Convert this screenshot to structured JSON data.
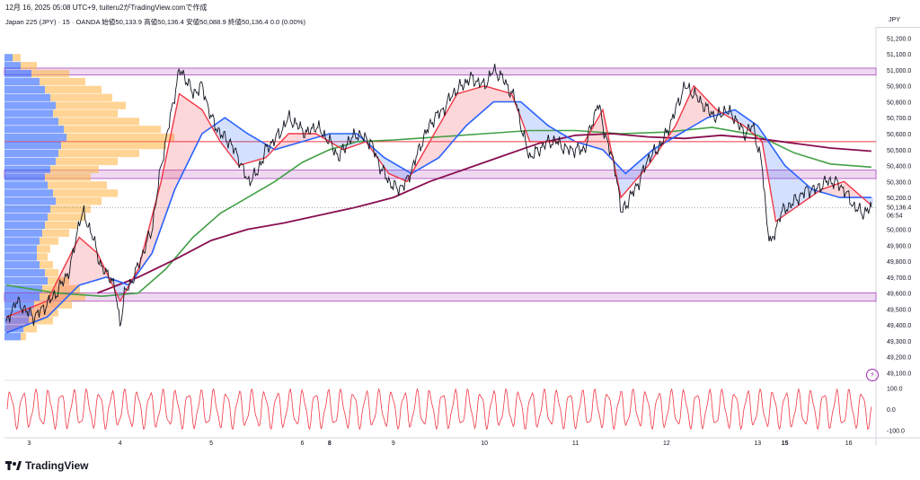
{
  "header": {
    "caption": "12月 16, 2025 05:08 UTC+9, tuiteru2がTradingView.comで作成",
    "symbol": "Japan 225 (JPY) · 15 · OANDA",
    "open": "始値50,133.9",
    "high": "高値50,136.4",
    "low": "安値50,088.9",
    "close": "終値50,136.4",
    "change": "0.0 (0.00%)"
  },
  "brand": {
    "name": "TradingView"
  },
  "price_panel": {
    "currency": "JPY",
    "last_price_label": "50,136.4",
    "countdown_label": "06:54"
  },
  "colors": {
    "price": "#131722",
    "kumo_red_line": "#f23645",
    "kumo_blue_line": "#2962ff",
    "ma_green": "#43a047",
    "ma_maroon": "#880e4f",
    "horizontal_red": "#f23645",
    "zone_purple": "#ce93d8",
    "volume_blue": "#2962ff",
    "volume_orange": "#ffb74d",
    "oscillator": "#f23645"
  },
  "chart_data": [
    {
      "type": "line",
      "y_axis_ticks": [
        51200,
        51100,
        51000,
        50900,
        50800,
        50700,
        50600,
        50500,
        50400,
        50300,
        50200,
        50100,
        50000,
        49900,
        49800,
        49700,
        49600,
        49500,
        49400,
        49300,
        49200,
        49100
      ],
      "y_tick_labels": [
        "51,200.0",
        "51,100.0",
        "51,000.0",
        "50,900.0",
        "50,800.0",
        "50,700.0",
        "50,600.0",
        "50,500.0",
        "50,400.0",
        "50,300.0",
        "50,200.0",
        "50,100.0",
        "50,000.0",
        "49,900.0",
        "49,800.0",
        "49,700.0",
        "49,600.0",
        "49,500.0",
        "49,400.0",
        "49,300.0",
        "49,200.0",
        "49,100.0"
      ],
      "ylim": [
        49080,
        51270
      ],
      "x_ticks": [
        "3",
        "4",
        "5",
        "6",
        "8",
        "9",
        "10",
        "11",
        "12",
        "13",
        "15",
        "16"
      ],
      "x_tick_bold": [
        false,
        false,
        false,
        false,
        true,
        false,
        false,
        false,
        false,
        false,
        true,
        false
      ],
      "x_tick_pos": [
        0,
        1,
        2,
        3,
        3.3,
        4,
        5,
        6,
        7,
        8,
        8.3,
        9
      ],
      "xlim": [
        -0.27,
        9.3
      ],
      "price": [
        [
          -0.25,
          49400
        ],
        [
          -0.15,
          49550
        ],
        [
          -0.05,
          49500
        ],
        [
          0.05,
          49450
        ],
        [
          0.15,
          49500
        ],
        [
          0.3,
          49600
        ],
        [
          0.45,
          49750
        ],
        [
          0.55,
          50050
        ],
        [
          0.6,
          50100
        ],
        [
          0.7,
          49950
        ],
        [
          0.8,
          49750
        ],
        [
          0.9,
          49700
        ],
        [
          0.95,
          49600
        ],
        [
          1.0,
          49400
        ],
        [
          1.05,
          49600
        ],
        [
          1.15,
          49700
        ],
        [
          1.25,
          49850
        ],
        [
          1.35,
          50000
        ],
        [
          1.45,
          50400
        ],
        [
          1.55,
          50700
        ],
        [
          1.65,
          51000
        ],
        [
          1.72,
          50950
        ],
        [
          1.8,
          50850
        ],
        [
          1.9,
          50900
        ],
        [
          2.0,
          50700
        ],
        [
          2.1,
          50600
        ],
        [
          2.2,
          50550
        ],
        [
          2.3,
          50450
        ],
        [
          2.4,
          50300
        ],
        [
          2.5,
          50350
        ],
        [
          2.6,
          50500
        ],
        [
          2.75,
          50600
        ],
        [
          2.85,
          50700
        ],
        [
          2.95,
          50650
        ],
        [
          3.05,
          50600
        ],
        [
          3.15,
          50650
        ],
        [
          3.3,
          50550
        ],
        [
          3.4,
          50450
        ],
        [
          3.5,
          50550
        ],
        [
          3.6,
          50600
        ],
        [
          3.75,
          50550
        ],
        [
          3.85,
          50400
        ],
        [
          3.95,
          50300
        ],
        [
          4.05,
          50250
        ],
        [
          4.15,
          50300
        ],
        [
          4.25,
          50450
        ],
        [
          4.35,
          50600
        ],
        [
          4.45,
          50700
        ],
        [
          4.55,
          50750
        ],
        [
          4.65,
          50850
        ],
        [
          4.75,
          50900
        ],
        [
          4.85,
          50950
        ],
        [
          5.0,
          50900
        ],
        [
          5.1,
          51000
        ],
        [
          5.2,
          50950
        ],
        [
          5.3,
          50850
        ],
        [
          5.35,
          50800
        ],
        [
          5.42,
          50600
        ],
        [
          5.5,
          50450
        ],
        [
          5.6,
          50500
        ],
        [
          5.7,
          50550
        ],
        [
          5.8,
          50550
        ],
        [
          5.9,
          50500
        ],
        [
          6.0,
          50500
        ],
        [
          6.1,
          50500
        ],
        [
          6.25,
          50800
        ],
        [
          6.3,
          50650
        ],
        [
          6.45,
          50350
        ],
        [
          6.5,
          50100
        ],
        [
          6.6,
          50200
        ],
        [
          6.7,
          50300
        ],
        [
          6.8,
          50450
        ],
        [
          6.9,
          50500
        ],
        [
          7.0,
          50600
        ],
        [
          7.1,
          50750
        ],
        [
          7.2,
          50900
        ],
        [
          7.3,
          50850
        ],
        [
          7.45,
          50750
        ],
        [
          7.55,
          50700
        ],
        [
          7.65,
          50750
        ],
        [
          7.75,
          50700
        ],
        [
          7.85,
          50600
        ],
        [
          7.95,
          50650
        ],
        [
          8.05,
          50400
        ],
        [
          8.1,
          50050
        ],
        [
          8.15,
          49900
        ],
        [
          8.25,
          50100
        ],
        [
          8.35,
          50150
        ],
        [
          8.45,
          50200
        ],
        [
          8.55,
          50250
        ],
        [
          8.65,
          50250
        ],
        [
          8.75,
          50300
        ],
        [
          8.85,
          50300
        ],
        [
          8.95,
          50250
        ],
        [
          9.05,
          50150
        ],
        [
          9.15,
          50100
        ],
        [
          9.25,
          50136.4
        ]
      ],
      "price_last": 50136.4,
      "red_line": [
        [
          -0.25,
          49450
        ],
        [
          0.2,
          49550
        ],
        [
          0.55,
          49950
        ],
        [
          0.75,
          49850
        ],
        [
          1.0,
          49550
        ],
        [
          1.2,
          49750
        ],
        [
          1.45,
          50300
        ],
        [
          1.65,
          50850
        ],
        [
          1.9,
          50750
        ],
        [
          2.1,
          50550
        ],
        [
          2.3,
          50400
        ],
        [
          2.6,
          50450
        ],
        [
          2.85,
          50600
        ],
        [
          3.15,
          50600
        ],
        [
          3.45,
          50500
        ],
        [
          3.7,
          50550
        ],
        [
          3.95,
          50350
        ],
        [
          4.15,
          50300
        ],
        [
          4.4,
          50550
        ],
        [
          4.7,
          50850
        ],
        [
          5.0,
          50900
        ],
        [
          5.3,
          50850
        ],
        [
          5.5,
          50550
        ],
        [
          5.8,
          50550
        ],
        [
          6.1,
          50550
        ],
        [
          6.3,
          50750
        ],
        [
          6.5,
          50200
        ],
        [
          6.8,
          50400
        ],
        [
          7.1,
          50650
        ],
        [
          7.3,
          50900
        ],
        [
          7.55,
          50750
        ],
        [
          7.85,
          50650
        ],
        [
          8.05,
          50550
        ],
        [
          8.2,
          50050
        ],
        [
          8.45,
          50150
        ],
        [
          8.7,
          50250
        ],
        [
          8.95,
          50300
        ],
        [
          9.25,
          50150
        ]
      ],
      "blue_line": [
        [
          -0.25,
          49350
        ],
        [
          0.2,
          49450
        ],
        [
          0.55,
          49650
        ],
        [
          0.85,
          49700
        ],
        [
          1.1,
          49650
        ],
        [
          1.35,
          49850
        ],
        [
          1.6,
          50250
        ],
        [
          1.9,
          50600
        ],
        [
          2.15,
          50700
        ],
        [
          2.4,
          50600
        ],
        [
          2.7,
          50500
        ],
        [
          3.0,
          50550
        ],
        [
          3.3,
          50600
        ],
        [
          3.6,
          50600
        ],
        [
          3.9,
          50450
        ],
        [
          4.2,
          50350
        ],
        [
          4.5,
          50450
        ],
        [
          4.8,
          50650
        ],
        [
          5.1,
          50800
        ],
        [
          5.4,
          50800
        ],
        [
          5.7,
          50650
        ],
        [
          6.0,
          50550
        ],
        [
          6.3,
          50500
        ],
        [
          6.55,
          50350
        ],
        [
          6.85,
          50500
        ],
        [
          7.15,
          50600
        ],
        [
          7.45,
          50700
        ],
        [
          7.75,
          50750
        ],
        [
          8.0,
          50650
        ],
        [
          8.3,
          50400
        ],
        [
          8.6,
          50250
        ],
        [
          8.9,
          50200
        ],
        [
          9.25,
          50200
        ]
      ],
      "green_ma": [
        [
          -0.25,
          49650
        ],
        [
          0.3,
          49600
        ],
        [
          0.8,
          49580
        ],
        [
          1.2,
          49600
        ],
        [
          1.5,
          49750
        ],
        [
          1.8,
          49950
        ],
        [
          2.1,
          50100
        ],
        [
          2.4,
          50200
        ],
        [
          2.7,
          50300
        ],
        [
          3.0,
          50420
        ],
        [
          3.3,
          50500
        ],
        [
          3.6,
          50550
        ],
        [
          4.0,
          50560
        ],
        [
          4.5,
          50580
        ],
        [
          5.0,
          50600
        ],
        [
          5.5,
          50620
        ],
        [
          6.0,
          50620
        ],
        [
          6.5,
          50600
        ],
        [
          7.0,
          50610
        ],
        [
          7.5,
          50640
        ],
        [
          8.0,
          50590
        ],
        [
          8.4,
          50480
        ],
        [
          8.8,
          50410
        ],
        [
          9.25,
          50390
        ]
      ],
      "maroon_ma": [
        [
          0.75,
          49600
        ],
        [
          1.2,
          49700
        ],
        [
          1.6,
          49810
        ],
        [
          2.0,
          49930
        ],
        [
          2.4,
          50000
        ],
        [
          2.8,
          50040
        ],
        [
          3.2,
          50090
        ],
        [
          3.6,
          50140
        ],
        [
          4.0,
          50200
        ],
        [
          4.4,
          50300
        ],
        [
          4.8,
          50380
        ],
        [
          5.2,
          50460
        ],
        [
          5.6,
          50540
        ],
        [
          6.0,
          50590
        ],
        [
          6.4,
          50600
        ],
        [
          6.8,
          50580
        ],
        [
          7.2,
          50570
        ],
        [
          7.6,
          50590
        ],
        [
          8.0,
          50570
        ],
        [
          8.4,
          50540
        ],
        [
          8.8,
          50510
        ],
        [
          9.25,
          50490
        ]
      ],
      "horizontal_line": 50550,
      "zones": [
        [
          50980,
          51000
        ],
        [
          50330,
          50360
        ],
        [
          49560,
          49590
        ]
      ],
      "volume_profile": {
        "bins_low_to_high": [
          49300,
          49350,
          49400,
          49450,
          49500,
          49550,
          49600,
          49650,
          49700,
          49750,
          49800,
          49850,
          49900,
          49950,
          50000,
          50050,
          50100,
          50150,
          50200,
          50250,
          50300,
          50350,
          50400,
          50450,
          50500,
          50550,
          50600,
          50650,
          50700,
          50750,
          50800,
          50850,
          50900,
          50950,
          51000,
          51050
        ],
        "blue_fraction": [
          0.06,
          0.07,
          0.09,
          0.1,
          0.11,
          0.13,
          0.14,
          0.16,
          0.15,
          0.13,
          0.12,
          0.12,
          0.13,
          0.14,
          0.15,
          0.16,
          0.17,
          0.19,
          0.18,
          0.16,
          0.15,
          0.17,
          0.19,
          0.2,
          0.21,
          0.23,
          0.22,
          0.2,
          0.18,
          0.19,
          0.17,
          0.15,
          0.13,
          0.1,
          0.06,
          0.03
        ],
        "total_fraction": [
          0.08,
          0.12,
          0.18,
          0.2,
          0.25,
          0.3,
          0.28,
          0.24,
          0.2,
          0.18,
          0.16,
          0.17,
          0.2,
          0.24,
          0.27,
          0.3,
          0.32,
          0.36,
          0.42,
          0.38,
          0.32,
          0.35,
          0.42,
          0.5,
          0.6,
          0.63,
          0.58,
          0.5,
          0.42,
          0.45,
          0.4,
          0.36,
          0.3,
          0.24,
          0.12,
          0.06
        ]
      }
    },
    {
      "type": "line",
      "name": "oscillator",
      "y_axis_ticks": [
        100,
        0,
        -100
      ],
      "y_tick_labels": [
        "100.0",
        "0.0",
        "-100.0"
      ],
      "ylim": [
        -120,
        120
      ],
      "cycles": 68,
      "upper_band": 95,
      "lower_band": -95
    }
  ]
}
